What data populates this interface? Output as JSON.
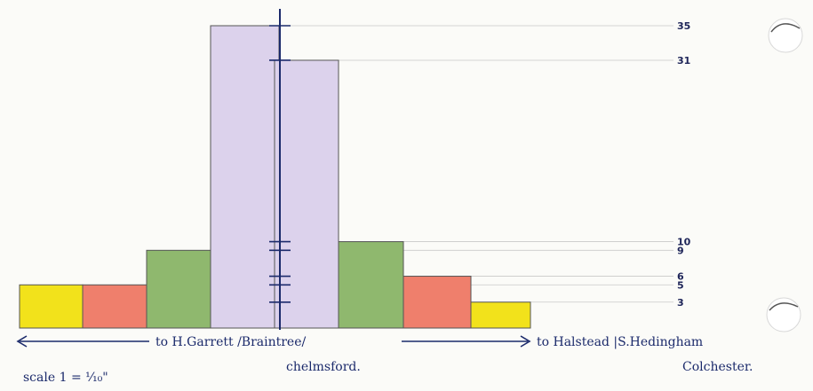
{
  "chart_data": {
    "type": "bar",
    "ylim": [
      0,
      35
    ],
    "right_tick_labels": [
      "35",
      "31",
      "10",
      "9",
      "6",
      "5",
      "3"
    ],
    "right_tick_values": [
      35,
      31,
      10,
      9,
      6,
      5,
      3
    ],
    "left_segment": {
      "values": [
        5,
        5,
        9,
        35
      ],
      "colors": [
        "#f2e21b",
        "#ef7f6c",
        "#8fb86e",
        "#dcd2ec"
      ]
    },
    "right_segment": {
      "values": [
        31,
        10,
        6,
        3
      ],
      "colors": [
        "#dcd2ec",
        "#8fb86e",
        "#ef7f6c",
        "#f2e21b"
      ]
    },
    "route_left_text": "to H.Garrett /Braintree/",
    "route_left_sub": "chelmsford.",
    "route_right_text": "to Halstead |S.Hedingham",
    "route_right_sub": "Colchester.",
    "scale_text": "scale   1 = ⅒\""
  },
  "colors": {
    "ink": "#1b2a6b",
    "guide": "#c9c9c9",
    "paper": "#fbfbf8"
  }
}
